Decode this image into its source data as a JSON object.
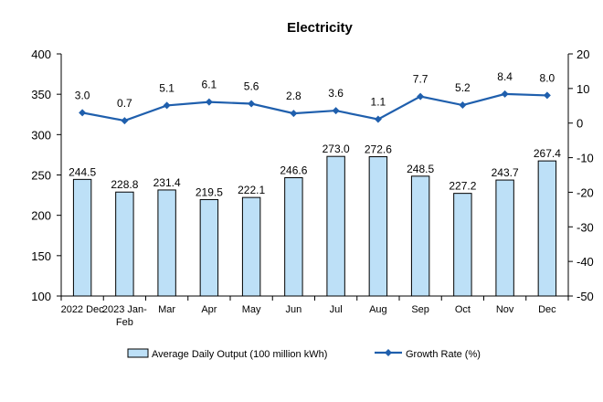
{
  "chart_data": {
    "type": "bar",
    "title": "Electricity",
    "categories": [
      "2022 Dec",
      "2023 Jan-Feb",
      "Mar",
      "Apr",
      "May",
      "Jun",
      "Jul",
      "Aug",
      "Sep",
      "Oct",
      "Nov",
      "Dec"
    ],
    "category_lines": [
      [
        "2022 Dec"
      ],
      [
        "2023 Jan-",
        "Feb"
      ],
      [
        "Mar"
      ],
      [
        "Apr"
      ],
      [
        "May"
      ],
      [
        "Jun"
      ],
      [
        "Jul"
      ],
      [
        "Aug"
      ],
      [
        "Sep"
      ],
      [
        "Oct"
      ],
      [
        "Nov"
      ],
      [
        "Dec"
      ]
    ],
    "series": [
      {
        "name": "Average Daily Output (100 million kWh)",
        "type": "bar",
        "axis": "left",
        "color": "#bde0f7",
        "border_color": "#000000",
        "values": [
          244.5,
          228.8,
          231.4,
          219.5,
          222.1,
          246.6,
          273.0,
          272.6,
          248.5,
          227.2,
          243.7,
          267.4
        ],
        "labels": [
          "244.5",
          "228.8",
          "231.4",
          "219.5",
          "222.1",
          "246.6",
          "273.0",
          "272.6",
          "248.5",
          "227.2",
          "243.7",
          "267.4"
        ]
      },
      {
        "name": "Growth Rate (%)",
        "type": "line",
        "axis": "right",
        "color": "#1f5fad",
        "values": [
          3.0,
          0.7,
          5.1,
          6.1,
          5.6,
          2.8,
          3.6,
          1.1,
          7.7,
          5.2,
          8.4,
          8.0
        ],
        "labels": [
          "3.0",
          "0.7",
          "5.1",
          "6.1",
          "5.6",
          "2.8",
          "3.6",
          "1.1",
          "7.7",
          "5.2",
          "8.4",
          "8.0"
        ]
      }
    ],
    "left_axis": {
      "ylim": [
        100,
        400
      ],
      "ticks": [
        "100",
        "150",
        "200",
        "250",
        "300",
        "350",
        "400"
      ]
    },
    "right_axis": {
      "ylim": [
        -50,
        20
      ],
      "ticks": [
        "-50",
        "-40",
        "-30",
        "-20",
        "-10",
        "0",
        "10",
        "20"
      ]
    },
    "grid": false,
    "legend_position": "bottom"
  }
}
